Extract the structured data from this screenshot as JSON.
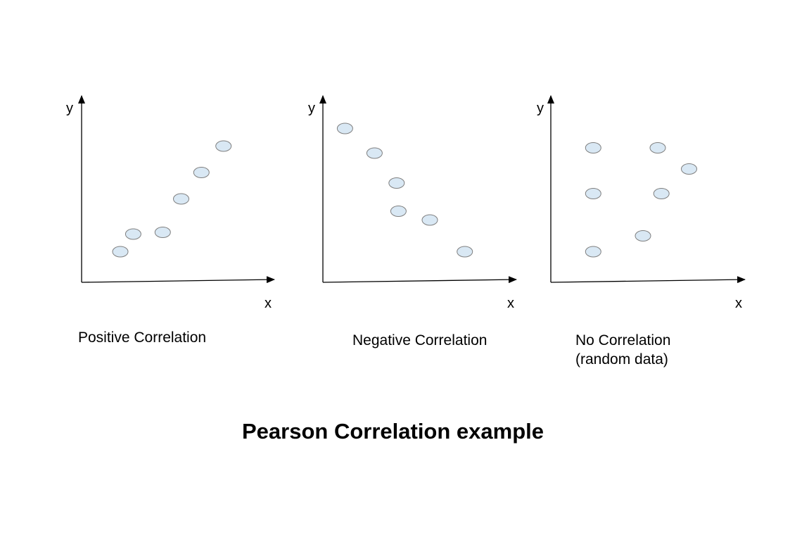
{
  "title": "Pearson Correlation example",
  "colors": {
    "point_fill": "#d9e8f4",
    "point_stroke": "#7f7f7f",
    "axis": "#000000"
  },
  "chart_data": [
    {
      "type": "scatter",
      "caption": "Positive Correlation",
      "caption_lines": [
        "Positive Correlation"
      ],
      "xlabel": "x",
      "ylabel": "y",
      "xlim": [
        0,
        10
      ],
      "ylim": [
        0,
        10
      ],
      "grid": false,
      "points": [
        {
          "x": 2.1,
          "y": 1.7
        },
        {
          "x": 2.8,
          "y": 2.7
        },
        {
          "x": 4.4,
          "y": 2.8
        },
        {
          "x": 5.4,
          "y": 4.7
        },
        {
          "x": 6.5,
          "y": 6.2
        },
        {
          "x": 7.7,
          "y": 7.7
        }
      ]
    },
    {
      "type": "scatter",
      "caption": "Negative Correlation",
      "caption_lines": [
        "Negative Correlation"
      ],
      "xlabel": "x",
      "ylabel": "y",
      "xlim": [
        0,
        10
      ],
      "ylim": [
        0,
        10
      ],
      "grid": false,
      "points": [
        {
          "x": 1.2,
          "y": 8.7
        },
        {
          "x": 2.8,
          "y": 7.3
        },
        {
          "x": 4.0,
          "y": 5.6
        },
        {
          "x": 4.1,
          "y": 4.0
        },
        {
          "x": 5.8,
          "y": 3.5
        },
        {
          "x": 7.7,
          "y": 1.7
        }
      ]
    },
    {
      "type": "scatter",
      "caption": "No Correlation (random data)",
      "caption_lines": [
        "No Correlation",
        "(random data)"
      ],
      "xlabel": "x",
      "ylabel": "y",
      "xlim": [
        0,
        10
      ],
      "ylim": [
        0,
        10
      ],
      "grid": false,
      "points": [
        {
          "x": 2.3,
          "y": 7.6
        },
        {
          "x": 5.8,
          "y": 7.6
        },
        {
          "x": 7.5,
          "y": 6.4
        },
        {
          "x": 2.3,
          "y": 5.0
        },
        {
          "x": 6.0,
          "y": 5.0
        },
        {
          "x": 5.0,
          "y": 2.6
        },
        {
          "x": 2.3,
          "y": 1.7
        }
      ]
    }
  ]
}
